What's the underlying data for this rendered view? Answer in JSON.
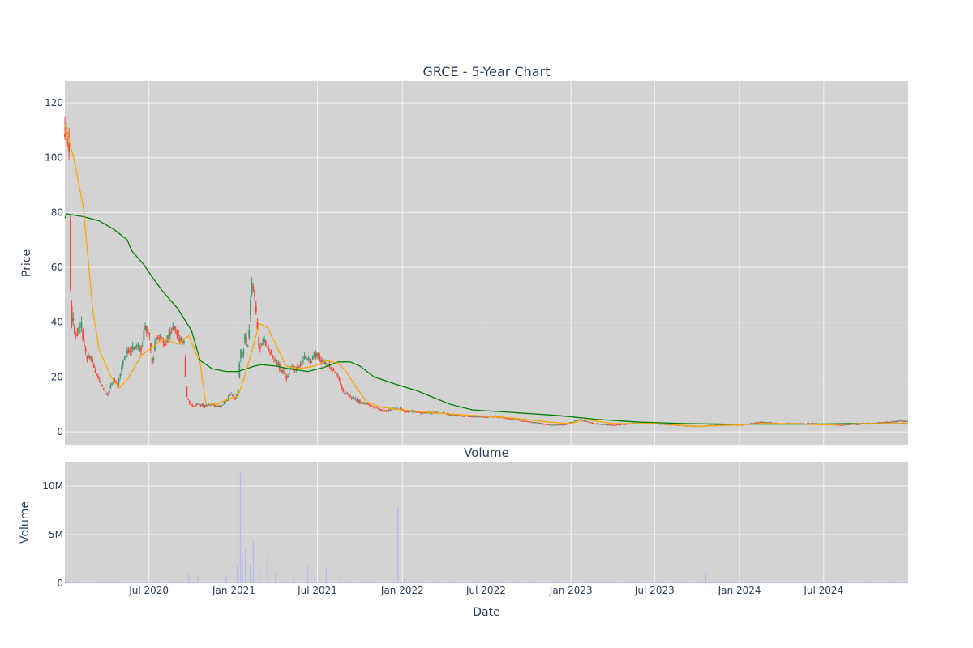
{
  "chart_data": {
    "type": "candlestick",
    "title": "GRCE - 5-Year Chart",
    "price_panel": {
      "ylabel": "Price",
      "ylim": [
        -5,
        128
      ],
      "y_ticks": [
        0,
        20,
        40,
        60,
        80,
        100,
        120
      ],
      "increasing_color": "#3d9970",
      "decreasing_color": "#ff4136",
      "grid": true,
      "ma_short": {
        "color": "#ffa500",
        "points": [
          [
            "2020-01-01",
            112
          ],
          [
            "2020-01-20",
            100
          ],
          [
            "2020-02-10",
            82
          ],
          [
            "2020-03-01",
            45
          ],
          [
            "2020-03-15",
            30
          ],
          [
            "2020-04-10",
            20
          ],
          [
            "2020-04-28",
            16
          ],
          [
            "2020-05-15",
            19
          ],
          [
            "2020-06-15",
            28
          ],
          [
            "2020-07-10",
            31
          ],
          [
            "2020-08-01",
            34
          ],
          [
            "2020-09-01",
            32
          ],
          [
            "2020-09-25",
            35
          ],
          [
            "2020-10-20",
            25
          ],
          [
            "2020-11-01",
            10.5
          ],
          [
            "2020-11-25",
            10
          ],
          [
            "2020-12-20",
            12
          ],
          [
            "2021-01-10",
            13
          ],
          [
            "2021-01-20",
            18
          ],
          [
            "2021-02-10",
            30
          ],
          [
            "2021-02-25",
            39.5
          ],
          [
            "2021-03-15",
            38
          ],
          [
            "2021-04-01",
            32
          ],
          [
            "2021-04-25",
            24
          ],
          [
            "2021-05-20",
            23
          ],
          [
            "2021-06-25",
            24
          ],
          [
            "2021-07-20",
            26
          ],
          [
            "2021-08-15",
            25
          ],
          [
            "2021-09-01",
            22
          ],
          [
            "2021-09-20",
            17
          ],
          [
            "2021-10-15",
            11
          ],
          [
            "2021-11-15",
            9
          ],
          [
            "2022-01-01",
            8
          ],
          [
            "2022-03-01",
            7
          ],
          [
            "2022-06-01",
            6
          ],
          [
            "2022-09-01",
            5
          ],
          [
            "2022-11-15",
            3.5
          ],
          [
            "2023-01-01",
            3
          ],
          [
            "2023-02-01",
            4.5
          ],
          [
            "2023-04-01",
            3
          ],
          [
            "2023-07-01",
            3
          ],
          [
            "2023-10-01",
            2
          ],
          [
            "2024-01-01",
            2.5
          ],
          [
            "2024-02-15",
            3
          ],
          [
            "2024-05-01",
            3
          ],
          [
            "2024-07-01",
            2.5
          ],
          [
            "2024-10-01",
            3
          ],
          [
            "2024-12-31",
            3
          ]
        ]
      },
      "ma_long": {
        "color": "#008000",
        "points": [
          [
            "2020-01-01",
            78
          ],
          [
            "2020-01-05",
            79.5
          ],
          [
            "2020-02-10",
            78.5
          ],
          [
            "2020-03-15",
            77
          ],
          [
            "2020-04-15",
            74
          ],
          [
            "2020-05-15",
            70
          ],
          [
            "2020-05-25",
            66
          ],
          [
            "2020-06-20",
            61
          ],
          [
            "2020-07-10",
            56
          ],
          [
            "2020-08-01",
            51
          ],
          [
            "2020-09-01",
            45
          ],
          [
            "2020-10-01",
            37
          ],
          [
            "2020-10-20",
            26
          ],
          [
            "2020-11-15",
            23
          ],
          [
            "2020-12-15",
            22
          ],
          [
            "2021-01-10",
            22
          ],
          [
            "2021-02-15",
            24
          ],
          [
            "2021-03-01",
            24.5
          ],
          [
            "2021-04-01",
            24
          ],
          [
            "2021-05-01",
            23
          ],
          [
            "2021-06-10",
            22
          ],
          [
            "2021-07-15",
            23.5
          ],
          [
            "2021-08-15",
            25.5
          ],
          [
            "2021-09-10",
            25.5
          ],
          [
            "2021-10-01",
            24
          ],
          [
            "2021-11-01",
            20
          ],
          [
            "2021-12-15",
            17.5
          ],
          [
            "2022-02-01",
            15
          ],
          [
            "2022-04-15",
            10
          ],
          [
            "2022-06-01",
            8
          ],
          [
            "2022-09-01",
            7
          ],
          [
            "2022-12-01",
            6
          ],
          [
            "2023-03-01",
            4.5
          ],
          [
            "2023-06-01",
            3.5
          ],
          [
            "2023-09-01",
            3
          ],
          [
            "2023-12-01",
            2.8
          ],
          [
            "2024-03-01",
            2.8
          ],
          [
            "2024-06-01",
            2.8
          ],
          [
            "2024-09-01",
            3
          ],
          [
            "2024-12-31",
            3
          ]
        ]
      },
      "price_path": [
        [
          "2020-01-01",
          110
        ],
        [
          "2020-01-03",
          118
        ],
        [
          "2020-01-06",
          105
        ],
        [
          "2020-01-08",
          108
        ],
        [
          "2020-01-10",
          103
        ],
        [
          "2020-01-14",
          35
        ],
        [
          "2020-01-18",
          44
        ],
        [
          "2020-01-23",
          33
        ],
        [
          "2020-01-30",
          37
        ],
        [
          "2020-02-05",
          40
        ],
        [
          "2020-02-10",
          33
        ],
        [
          "2020-02-18",
          26
        ],
        [
          "2020-02-25",
          28
        ],
        [
          "2020-03-05",
          23
        ],
        [
          "2020-03-15",
          19
        ],
        [
          "2020-03-25",
          15
        ],
        [
          "2020-04-01",
          13
        ],
        [
          "2020-04-08",
          16
        ],
        [
          "2020-04-15",
          19
        ],
        [
          "2020-04-25",
          17
        ],
        [
          "2020-05-05",
          25
        ],
        [
          "2020-05-15",
          29
        ],
        [
          "2020-05-25",
          30
        ],
        [
          "2020-06-05",
          31
        ],
        [
          "2020-06-15",
          30
        ],
        [
          "2020-06-22",
          38
        ],
        [
          "2020-07-01",
          36
        ],
        [
          "2020-07-08",
          24
        ],
        [
          "2020-07-15",
          33
        ],
        [
          "2020-07-25",
          35
        ],
        [
          "2020-08-05",
          32
        ],
        [
          "2020-08-15",
          36
        ],
        [
          "2020-08-25",
          38
        ],
        [
          "2020-09-05",
          34
        ],
        [
          "2020-09-15",
          32
        ],
        [
          "2020-09-20",
          13
        ],
        [
          "2020-10-01",
          9.5
        ],
        [
          "2020-10-15",
          10
        ],
        [
          "2020-11-01",
          9.5
        ],
        [
          "2020-11-15",
          10
        ],
        [
          "2020-12-01",
          9
        ],
        [
          "2020-12-15",
          11
        ],
        [
          "2020-12-25",
          14
        ],
        [
          "2021-01-05",
          12
        ],
        [
          "2021-01-10",
          15
        ],
        [
          "2021-01-15",
          30
        ],
        [
          "2021-01-20",
          26
        ],
        [
          "2021-01-25",
          35
        ],
        [
          "2021-02-01",
          30
        ],
        [
          "2021-02-05",
          45
        ],
        [
          "2021-02-10",
          55
        ],
        [
          "2021-02-15",
          50
        ],
        [
          "2021-02-20",
          38
        ],
        [
          "2021-02-25",
          30
        ],
        [
          "2021-03-05",
          34
        ],
        [
          "2021-03-15",
          30
        ],
        [
          "2021-03-25",
          27
        ],
        [
          "2021-04-05",
          25
        ],
        [
          "2021-04-15",
          22
        ],
        [
          "2021-04-25",
          20
        ],
        [
          "2021-05-05",
          24
        ],
        [
          "2021-05-15",
          23
        ],
        [
          "2021-05-25",
          25
        ],
        [
          "2021-06-05",
          28
        ],
        [
          "2021-06-15",
          25
        ],
        [
          "2021-06-25",
          29
        ],
        [
          "2021-07-05",
          27
        ],
        [
          "2021-07-15",
          25
        ],
        [
          "2021-07-25",
          24
        ],
        [
          "2021-08-05",
          22
        ],
        [
          "2021-08-15",
          20
        ],
        [
          "2021-08-25",
          15
        ],
        [
          "2021-09-05",
          13
        ],
        [
          "2021-09-20",
          12
        ],
        [
          "2021-10-05",
          10.5
        ],
        [
          "2021-10-20",
          10
        ],
        [
          "2021-11-05",
          9
        ],
        [
          "2021-11-20",
          7.5
        ],
        [
          "2021-12-05",
          8
        ],
        [
          "2021-12-20",
          8.5
        ],
        [
          "2022-01-10",
          7.5
        ],
        [
          "2022-02-15",
          7
        ],
        [
          "2022-03-20",
          6.8
        ],
        [
          "2022-05-01",
          6
        ],
        [
          "2022-06-15",
          5.5
        ],
        [
          "2022-08-01",
          5.5
        ],
        [
          "2022-09-15",
          4
        ],
        [
          "2022-10-15",
          3.5
        ],
        [
          "2022-11-15",
          2.5
        ],
        [
          "2022-12-15",
          2.5
        ],
        [
          "2023-01-20",
          4.5
        ],
        [
          "2023-02-20",
          3
        ],
        [
          "2023-04-01",
          2.5
        ],
        [
          "2023-05-15",
          3
        ],
        [
          "2023-07-01",
          3
        ],
        [
          "2023-08-15",
          2.5
        ],
        [
          "2023-10-01",
          2
        ],
        [
          "2023-11-15",
          2.5
        ],
        [
          "2024-01-01",
          2.5
        ],
        [
          "2024-02-15",
          3.5
        ],
        [
          "2024-04-01",
          3
        ],
        [
          "2024-06-01",
          3
        ],
        [
          "2024-08-01",
          2.5
        ],
        [
          "2024-10-01",
          3
        ],
        [
          "2024-11-15",
          3.5
        ],
        [
          "2024-12-15",
          4
        ],
        [
          "2024-12-31",
          3.8
        ]
      ]
    },
    "volume_panel": {
      "title": "Volume",
      "ylabel": "Volume",
      "xlabel": "Date",
      "ylim": [
        0,
        12500000
      ],
      "y_ticks": [
        {
          "value": 0,
          "label": "0"
        },
        {
          "value": 5000000,
          "label": "5M"
        },
        {
          "value": 10000000,
          "label": "10M"
        }
      ],
      "bar_color": "#b8b8f0",
      "base_level": 80000,
      "spikes": [
        [
          "2020-01-02",
          500000
        ],
        [
          "2020-01-07",
          300000
        ],
        [
          "2020-09-25",
          900000
        ],
        [
          "2020-10-15",
          700000
        ],
        [
          "2020-12-15",
          700000
        ],
        [
          "2021-01-01",
          2200000
        ],
        [
          "2021-01-08",
          1800000
        ],
        [
          "2021-01-15",
          11500000
        ],
        [
          "2021-01-20",
          3000000
        ],
        [
          "2021-01-26",
          3700000
        ],
        [
          "2021-02-05",
          2000000
        ],
        [
          "2021-02-12",
          4300000
        ],
        [
          "2021-02-25",
          1500000
        ],
        [
          "2021-03-15",
          2800000
        ],
        [
          "2021-04-01",
          1200000
        ],
        [
          "2021-05-10",
          600000
        ],
        [
          "2021-06-10",
          1800000
        ],
        [
          "2021-06-25",
          800000
        ],
        [
          "2021-07-05",
          900000
        ],
        [
          "2021-07-20",
          1500000
        ],
        [
          "2021-08-20",
          400000
        ],
        [
          "2021-12-22",
          7800000
        ],
        [
          "2022-01-05",
          500000
        ],
        [
          "2023-10-20",
          1000000
        ]
      ]
    },
    "x_axis": {
      "range": [
        "2020-01-01",
        "2024-12-31"
      ],
      "ticks": [
        {
          "date": "2020-07-01",
          "label": "Jul 2020"
        },
        {
          "date": "2021-01-01",
          "label": "Jan 2021"
        },
        {
          "date": "2021-07-01",
          "label": "Jul 2021"
        },
        {
          "date": "2022-01-01",
          "label": "Jan 2022"
        },
        {
          "date": "2022-07-01",
          "label": "Jul 2022"
        },
        {
          "date": "2023-01-01",
          "label": "Jan 2023"
        },
        {
          "date": "2023-07-01",
          "label": "Jul 2023"
        },
        {
          "date": "2024-01-01",
          "label": "Jan 2024"
        },
        {
          "date": "2024-07-01",
          "label": "Jul 2024"
        }
      ]
    },
    "plot_bgcolor": "#d3d3d3",
    "grid_color": "#f2f2f2"
  }
}
